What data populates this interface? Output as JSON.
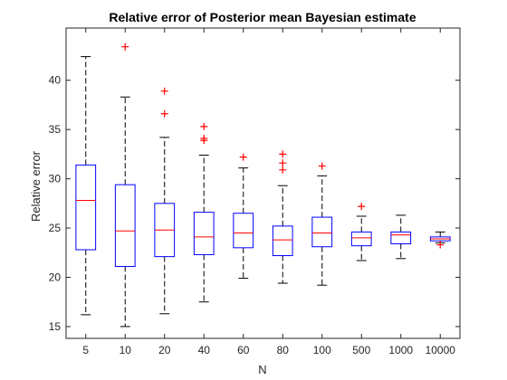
{
  "chart_data": {
    "type": "boxplot",
    "title": "Relative error of Posterior mean Bayesian estimate",
    "xlabel": "N",
    "ylabel": "Relative error",
    "ylim": [
      13.8,
      45.3
    ],
    "yticks": [
      15,
      20,
      25,
      30,
      35,
      40
    ],
    "categories": [
      "5",
      "10",
      "20",
      "40",
      "60",
      "80",
      "100",
      "500",
      "1000",
      "10000"
    ],
    "boxes": [
      {
        "category": "5",
        "whisker_low": 16.2,
        "q1": 22.8,
        "median": 27.8,
        "q3": 31.4,
        "whisker_high": 42.4,
        "outliers": []
      },
      {
        "category": "10",
        "whisker_low": 15.0,
        "q1": 21.1,
        "median": 24.7,
        "q3": 29.4,
        "whisker_high": 38.3,
        "outliers": [
          43.4
        ]
      },
      {
        "category": "20",
        "whisker_low": 16.3,
        "q1": 22.1,
        "median": 24.8,
        "q3": 27.5,
        "whisker_high": 34.2,
        "outliers": [
          36.6,
          38.9
        ]
      },
      {
        "category": "40",
        "whisker_low": 17.5,
        "q1": 22.3,
        "median": 24.1,
        "q3": 26.6,
        "whisker_high": 32.4,
        "outliers": [
          33.9,
          34.1,
          35.3
        ]
      },
      {
        "category": "60",
        "whisker_low": 19.9,
        "q1": 23.0,
        "median": 24.5,
        "q3": 26.5,
        "whisker_high": 31.1,
        "outliers": [
          32.2
        ]
      },
      {
        "category": "80",
        "whisker_low": 19.4,
        "q1": 22.2,
        "median": 23.8,
        "q3": 25.2,
        "whisker_high": 29.3,
        "outliers": [
          30.9,
          31.6,
          32.5
        ]
      },
      {
        "category": "100",
        "whisker_low": 19.2,
        "q1": 23.1,
        "median": 24.5,
        "q3": 26.1,
        "whisker_high": 30.3,
        "outliers": [
          31.3
        ]
      },
      {
        "category": "500",
        "whisker_low": 21.7,
        "q1": 23.2,
        "median": 24.0,
        "q3": 24.6,
        "whisker_high": 26.2,
        "outliers": [
          27.2
        ]
      },
      {
        "category": "1000",
        "whisker_low": 21.9,
        "q1": 23.4,
        "median": 24.3,
        "q3": 24.6,
        "whisker_high": 26.3,
        "outliers": []
      },
      {
        "category": "10000",
        "whisker_low": 23.5,
        "q1": 23.7,
        "median": 23.9,
        "q3": 24.1,
        "whisker_high": 24.6,
        "outliers": [
          23.3
        ]
      }
    ],
    "grid": false,
    "colors": {
      "box": "#0000ff",
      "median": "#ff0000",
      "whisker": "#000000",
      "outlier": "#ff0000",
      "axes": "#262626"
    }
  }
}
